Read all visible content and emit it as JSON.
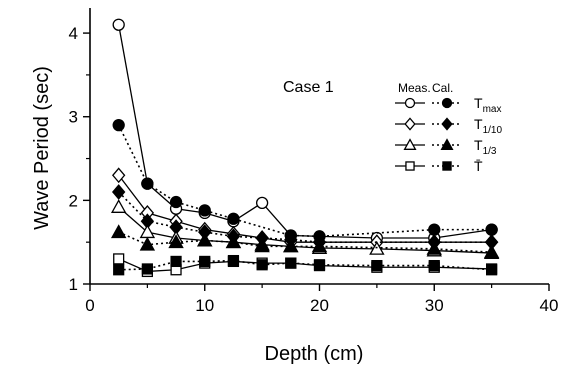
{
  "chart_data": {
    "type": "line",
    "title": "",
    "annotation": "Case 1",
    "xlabel": "Depth  (cm)",
    "ylabel": "Wave Period  (sec)",
    "xlim": [
      0,
      40
    ],
    "ylim": [
      1,
      4.3
    ],
    "xticks": [
      0,
      10,
      20,
      30,
      40
    ],
    "yticks": [
      1,
      2,
      3,
      4
    ],
    "grid": false,
    "legend_position": "top-right",
    "legend_headers": [
      "Meas.",
      "Cal."
    ],
    "legend_entries": [
      "T_max",
      "T_1/10",
      "T_1/3",
      "T̄"
    ],
    "series": [
      {
        "name": "T_max Meas.",
        "kind": "measured",
        "marker": "circle",
        "filled": false,
        "line": "solid",
        "points": [
          [
            2.5,
            4.1
          ],
          [
            5,
            2.2
          ],
          [
            7.5,
            1.9
          ],
          [
            10,
            1.85
          ],
          [
            12.5,
            1.75
          ],
          [
            15,
            1.97
          ],
          [
            17.5,
            1.58
          ],
          [
            25,
            1.55
          ],
          [
            30,
            1.55
          ],
          [
            35,
            1.65
          ]
        ]
      },
      {
        "name": "T_max Cal.",
        "kind": "calculated",
        "marker": "circle",
        "filled": true,
        "line": "dotted",
        "points": [
          [
            2.5,
            2.9
          ],
          [
            5,
            2.2
          ],
          [
            7.5,
            1.98
          ],
          [
            10,
            1.88
          ],
          [
            12.5,
            1.78
          ],
          [
            17.5,
            1.58
          ],
          [
            20,
            1.57
          ],
          [
            30,
            1.65
          ],
          [
            35,
            1.65
          ]
        ]
      },
      {
        "name": "T_1/10 Meas.",
        "kind": "measured",
        "marker": "diamond",
        "filled": false,
        "line": "solid",
        "points": [
          [
            2.5,
            2.3
          ],
          [
            5,
            1.85
          ],
          [
            7.5,
            1.75
          ],
          [
            10,
            1.65
          ],
          [
            12.5,
            1.6
          ],
          [
            15,
            1.55
          ],
          [
            17.5,
            1.5
          ],
          [
            20,
            1.5
          ],
          [
            25,
            1.5
          ],
          [
            30,
            1.5
          ],
          [
            35,
            1.5
          ]
        ]
      },
      {
        "name": "T_1/10 Cal.",
        "kind": "calculated",
        "marker": "diamond",
        "filled": true,
        "line": "dotted",
        "points": [
          [
            2.5,
            2.1
          ],
          [
            5,
            1.75
          ],
          [
            7.5,
            1.68
          ],
          [
            10,
            1.62
          ],
          [
            12.5,
            1.57
          ],
          [
            15,
            1.55
          ],
          [
            17.5,
            1.53
          ],
          [
            20,
            1.5
          ],
          [
            30,
            1.5
          ],
          [
            35,
            1.5
          ]
        ]
      },
      {
        "name": "T_1/3 Meas.",
        "kind": "measured",
        "marker": "triangle",
        "filled": false,
        "line": "solid",
        "points": [
          [
            2.5,
            1.92
          ],
          [
            5,
            1.62
          ],
          [
            7.5,
            1.55
          ],
          [
            10,
            1.52
          ],
          [
            12.5,
            1.5
          ],
          [
            15,
            1.47
          ],
          [
            17.5,
            1.45
          ],
          [
            20,
            1.43
          ],
          [
            25,
            1.42
          ],
          [
            30,
            1.4
          ],
          [
            35,
            1.37
          ]
        ]
      },
      {
        "name": "T_1/3 Cal.",
        "kind": "calculated",
        "marker": "triangle",
        "filled": true,
        "line": "dotted",
        "points": [
          [
            2.5,
            1.62
          ],
          [
            5,
            1.47
          ],
          [
            7.5,
            1.5
          ],
          [
            10,
            1.52
          ],
          [
            12.5,
            1.5
          ],
          [
            15,
            1.45
          ],
          [
            17.5,
            1.45
          ],
          [
            20,
            1.45
          ],
          [
            30,
            1.42
          ],
          [
            35,
            1.38
          ]
        ]
      },
      {
        "name": "T̄ Meas.",
        "kind": "measured",
        "marker": "square",
        "filled": false,
        "line": "solid",
        "points": [
          [
            2.5,
            1.3
          ],
          [
            5,
            1.15
          ],
          [
            7.5,
            1.17
          ],
          [
            10,
            1.25
          ],
          [
            12.5,
            1.27
          ],
          [
            15,
            1.25
          ],
          [
            17.5,
            1.25
          ],
          [
            20,
            1.22
          ],
          [
            25,
            1.2
          ],
          [
            30,
            1.2
          ],
          [
            35,
            1.18
          ]
        ]
      },
      {
        "name": "T̄ Cal.",
        "kind": "calculated",
        "marker": "square",
        "filled": true,
        "line": "dotted",
        "points": [
          [
            2.5,
            1.17
          ],
          [
            5,
            1.18
          ],
          [
            7.5,
            1.27
          ],
          [
            10,
            1.27
          ],
          [
            12.5,
            1.28
          ],
          [
            15,
            1.23
          ],
          [
            17.5,
            1.25
          ],
          [
            20,
            1.23
          ],
          [
            25,
            1.22
          ],
          [
            30,
            1.22
          ],
          [
            35,
            1.17
          ]
        ]
      }
    ]
  }
}
